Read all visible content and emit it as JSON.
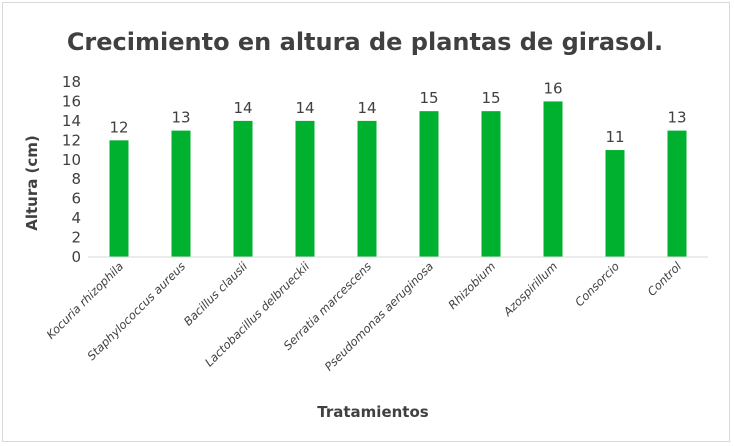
{
  "chart_data": {
    "type": "bar",
    "title": "Crecimiento en altura de plantas de girasol.",
    "xlabel": "Tratamientos",
    "ylabel": "Altura (cm)",
    "ylim": [
      0,
      18
    ],
    "yticks": [
      0,
      2,
      4,
      6,
      8,
      10,
      12,
      14,
      16,
      18
    ],
    "grid": false,
    "legend": "none",
    "categories": [
      "Kocuria rhizophila",
      "Staphylococcus aureus",
      "Bacillus clausii",
      "Lactobacillus delbrueckii",
      "Serratia marcescens",
      "Pseudomonas aeruginosa",
      "Rhizobium",
      "Azospirillum",
      "Consorcio",
      "Control"
    ],
    "values": [
      12,
      13,
      14,
      14,
      14,
      15,
      15,
      16,
      11,
      13
    ],
    "bar_color": "#00b02f"
  }
}
